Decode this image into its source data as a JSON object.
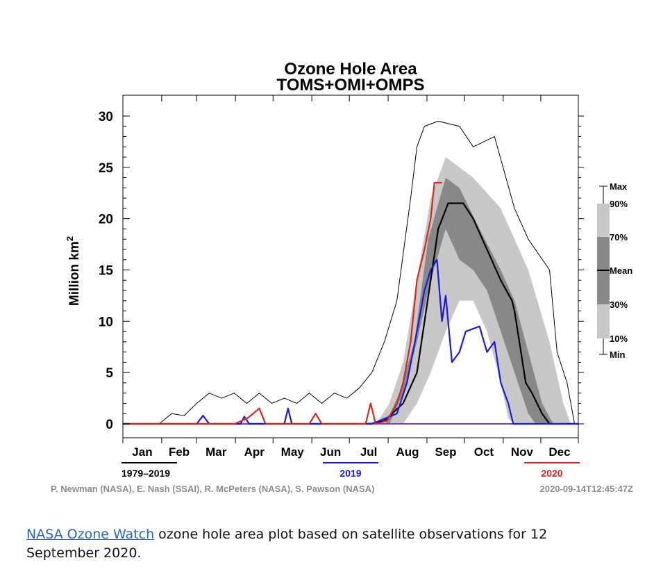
{
  "chart_data": {
    "type": "area",
    "title": "Ozone Hole Area",
    "subtitle": "TOMS+OMI+OMPS",
    "ylabel": "Million km",
    "ylabel_superscript": "2",
    "ylim": [
      0,
      30
    ],
    "yticks": [
      0,
      5,
      10,
      15,
      20,
      25,
      30
    ],
    "xlim_day_of_year": [
      1,
      365
    ],
    "months": [
      "Jan",
      "Feb",
      "Mar",
      "Apr",
      "May",
      "Jun",
      "Jul",
      "Aug",
      "Sep",
      "Oct",
      "Nov",
      "Dec"
    ],
    "legend": {
      "placement": "right",
      "entries": [
        "Max",
        "90%",
        "70%",
        "Mean",
        "30%",
        "10%",
        "Min"
      ]
    },
    "colors": {
      "band_10_90": "#c8c8c8",
      "band_30_70": "#888888",
      "mean": "#000000",
      "max": "#000000",
      "y2019": "#1a1adc",
      "y2020": "#d42a1e",
      "min": "#7a3fc8"
    },
    "bands": {
      "p90": [
        [
          1,
          0
        ],
        [
          190,
          0
        ],
        [
          205,
          0.3
        ],
        [
          214,
          2
        ],
        [
          225,
          6
        ],
        [
          236,
          14
        ],
        [
          247,
          22
        ],
        [
          259,
          26
        ],
        [
          281,
          24
        ],
        [
          303,
          21
        ],
        [
          325,
          15
        ],
        [
          342,
          8
        ],
        [
          353,
          2
        ],
        [
          359,
          0
        ],
        [
          365,
          0
        ]
      ],
      "p70": [
        [
          1,
          0
        ],
        [
          211,
          0
        ],
        [
          222,
          3
        ],
        [
          234,
          8
        ],
        [
          245,
          18
        ],
        [
          259,
          24
        ],
        [
          270,
          23
        ],
        [
          286,
          19
        ],
        [
          303,
          15
        ],
        [
          314,
          12
        ],
        [
          325,
          7
        ],
        [
          336,
          2
        ],
        [
          345,
          0
        ],
        [
          365,
          0
        ]
      ],
      "p30": [
        [
          1,
          0
        ],
        [
          214,
          0
        ],
        [
          225,
          3
        ],
        [
          236,
          8
        ],
        [
          247,
          14
        ],
        [
          259,
          19
        ],
        [
          270,
          16
        ],
        [
          281,
          15
        ],
        [
          292,
          13
        ],
        [
          303,
          9
        ],
        [
          314,
          5
        ],
        [
          325,
          1
        ],
        [
          331,
          0
        ],
        [
          365,
          0
        ]
      ],
      "p10": [
        [
          1,
          0
        ],
        [
          225,
          0
        ],
        [
          236,
          2
        ],
        [
          247,
          5
        ],
        [
          259,
          9
        ],
        [
          270,
          12
        ],
        [
          281,
          12
        ],
        [
          292,
          9
        ],
        [
          303,
          4
        ],
        [
          309,
          0.5
        ],
        [
          314,
          0
        ],
        [
          365,
          0
        ]
      ]
    },
    "series": [
      {
        "name": "Mean",
        "points": [
          [
            1,
            0
          ],
          [
            200,
            0
          ],
          [
            210,
            0.3
          ],
          [
            225,
            2
          ],
          [
            236,
            5
          ],
          [
            247,
            14
          ],
          [
            253,
            19
          ],
          [
            261,
            21.5
          ],
          [
            273,
            21.5
          ],
          [
            281,
            20
          ],
          [
            292,
            17
          ],
          [
            303,
            14
          ],
          [
            312,
            12
          ],
          [
            314,
            11
          ],
          [
            323,
            4
          ],
          [
            328,
            3
          ],
          [
            336,
            1
          ],
          [
            342,
            0
          ],
          [
            365,
            0
          ]
        ]
      },
      {
        "name": "Max",
        "points": [
          [
            1,
            0
          ],
          [
            30,
            0
          ],
          [
            40,
            1
          ],
          [
            50,
            0.8
          ],
          [
            60,
            2
          ],
          [
            70,
            3
          ],
          [
            80,
            2.5
          ],
          [
            90,
            3
          ],
          [
            100,
            2
          ],
          [
            110,
            3
          ],
          [
            120,
            2
          ],
          [
            130,
            2.5
          ],
          [
            140,
            2
          ],
          [
            150,
            3
          ],
          [
            160,
            2
          ],
          [
            170,
            3
          ],
          [
            180,
            2.5
          ],
          [
            190,
            3.5
          ],
          [
            200,
            5
          ],
          [
            210,
            8
          ],
          [
            220,
            12
          ],
          [
            231,
            22
          ],
          [
            236,
            27
          ],
          [
            242,
            29
          ],
          [
            253,
            29.5
          ],
          [
            270,
            29
          ],
          [
            281,
            27
          ],
          [
            298,
            28
          ],
          [
            314,
            21
          ],
          [
            325,
            18
          ],
          [
            342,
            15
          ],
          [
            348,
            7
          ],
          [
            356,
            4
          ],
          [
            362,
            0
          ],
          [
            365,
            0
          ]
        ]
      },
      {
        "name": "1979–2019",
        "points": [
          [
            1,
            0
          ],
          [
            365,
            0
          ]
        ]
      },
      {
        "name": "2019",
        "points": [
          [
            1,
            0
          ],
          [
            60,
            0
          ],
          [
            65,
            0.8
          ],
          [
            70,
            0
          ],
          [
            95,
            0
          ],
          [
            98,
            0.7
          ],
          [
            102,
            0
          ],
          [
            130,
            0
          ],
          [
            133,
            1.5
          ],
          [
            136,
            0
          ],
          [
            170,
            0
          ],
          [
            200,
            0
          ],
          [
            210,
            0.5
          ],
          [
            220,
            1
          ],
          [
            228,
            4
          ],
          [
            236,
            9
          ],
          [
            242,
            13
          ],
          [
            247,
            15
          ],
          [
            252,
            16
          ],
          [
            256,
            10
          ],
          [
            259,
            12.5
          ],
          [
            264,
            6
          ],
          [
            270,
            7
          ],
          [
            275,
            9
          ],
          [
            286,
            9.5
          ],
          [
            292,
            7
          ],
          [
            298,
            8
          ],
          [
            303,
            4
          ],
          [
            309,
            2
          ],
          [
            313,
            0
          ],
          [
            365,
            0
          ]
        ]
      },
      {
        "name": "2020",
        "points": [
          [
            1,
            0
          ],
          [
            90,
            0
          ],
          [
            100,
            0.5
          ],
          [
            110,
            1.5
          ],
          [
            115,
            0
          ],
          [
            150,
            0
          ],
          [
            155,
            1
          ],
          [
            160,
            0
          ],
          [
            195,
            0
          ],
          [
            199,
            2
          ],
          [
            203,
            0
          ],
          [
            212,
            0.3
          ],
          [
            220,
            2
          ],
          [
            225,
            4
          ],
          [
            231,
            8
          ],
          [
            236,
            14
          ],
          [
            242,
            17
          ],
          [
            247,
            20
          ],
          [
            250,
            23.5
          ],
          [
            256,
            23.5
          ]
        ]
      }
    ],
    "period_labels": [
      "1979–2019",
      "2019",
      "2020"
    ],
    "credits": "P. Newman (NASA), E. Nash (SSAI), R. McPeters (NASA), S. Pawson (NASA)",
    "timestamp": "2020-09-14T12:45:47Z"
  },
  "caption": {
    "link": "NASA Ozone Watch",
    "text": " ozone hole area plot based on satellite observations for 12 September 2020."
  }
}
